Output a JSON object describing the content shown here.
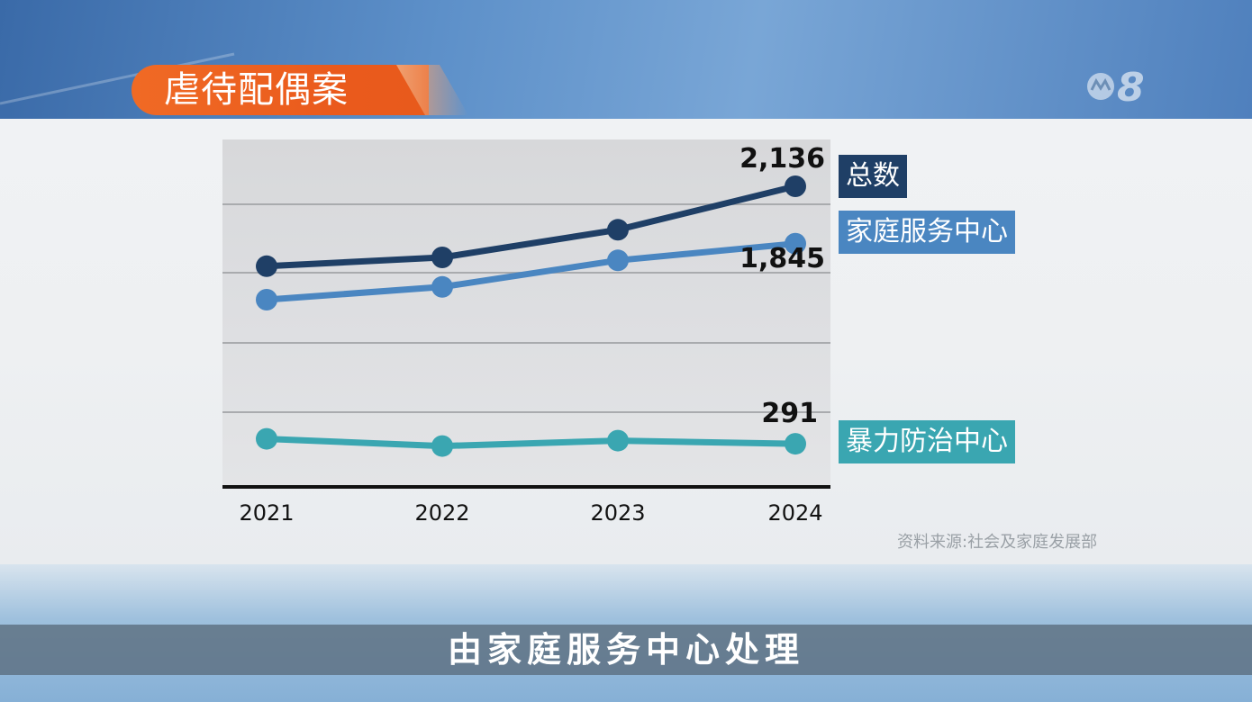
{
  "header": {
    "title": "虐待配偶案"
  },
  "source_note": "资料来源:社会及家庭发展部",
  "subtitle": "由家庭服务中心处理",
  "colors": {
    "total": "#1f3f66",
    "family": "#4a86c1",
    "violence": "#3aa6b1",
    "title_bg": "#ee6322"
  },
  "legend": {
    "total": "总数",
    "family": "家庭服务中心",
    "violence": "暴力防治中心"
  },
  "chart_data": {
    "type": "line",
    "title": "虐待配偶案",
    "categories": [
      "2021",
      "2022",
      "2023",
      "2024"
    ],
    "series": [
      {
        "name": "总数",
        "values": [
          1730,
          1775,
          1915,
          2136
        ],
        "end_label": "2,136"
      },
      {
        "name": "家庭服务中心",
        "values": [
          1560,
          1625,
          1760,
          1845
        ],
        "end_label": "1,845"
      },
      {
        "name": "暴力防治中心",
        "values": [
          307,
          284,
          301,
          291
        ],
        "end_label": "291"
      }
    ],
    "grid": true,
    "legend_placement": "right"
  }
}
